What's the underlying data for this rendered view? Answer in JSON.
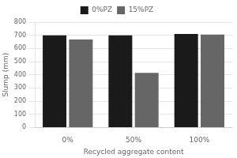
{
  "chart_data": {
    "type": "bar",
    "categories": [
      "0%",
      "50%",
      "100%"
    ],
    "series": [
      {
        "name": "0%PZ",
        "color": "#1a1a1a",
        "values": [
          700,
          700,
          710
        ]
      },
      {
        "name": "15%PZ",
        "color": "#666666",
        "values": [
          668,
          415,
          705
        ]
      }
    ],
    "xlabel": "Recycled aggregate content",
    "ylabel": "Slump (mm)",
    "ylim": [
      0,
      800
    ],
    "yticks": [
      0,
      100,
      200,
      300,
      400,
      500,
      600,
      700,
      800
    ],
    "grid": true,
    "legend": "top"
  }
}
